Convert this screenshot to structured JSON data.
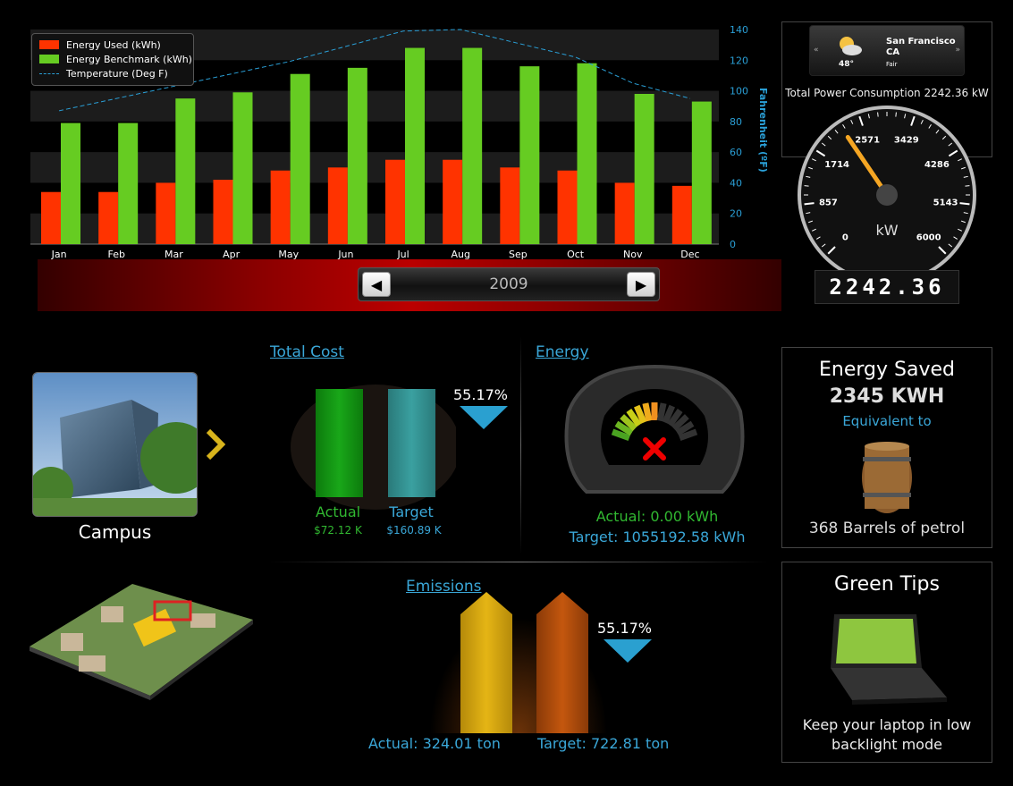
{
  "chart_data": {
    "type": "bar",
    "categories": [
      "Jan",
      "Feb",
      "Mar",
      "Apr",
      "May",
      "Jun",
      "Jul",
      "Aug",
      "Sep",
      "Oct",
      "Nov",
      "Dec"
    ],
    "series": [
      {
        "name": "Energy Used (kWh)",
        "values": [
          34,
          34,
          40,
          42,
          48,
          50,
          55,
          55,
          50,
          48,
          40,
          38
        ],
        "color": "#ff3300"
      },
      {
        "name": "Energy Benchmark (kWh)",
        "values": [
          79,
          79,
          95,
          99,
          111,
          115,
          128,
          128,
          116,
          118,
          98,
          93
        ],
        "color": "#66cc22"
      },
      {
        "name": "Temperature (Deg F)",
        "values": [
          87,
          95,
          103,
          111,
          119,
          129,
          139,
          140,
          131,
          122,
          105,
          95
        ],
        "color": "#2a9fd6",
        "style": "dashed"
      }
    ],
    "ylim": [
      0,
      140
    ],
    "yticks": [
      "0",
      "20",
      "40",
      "60",
      "80",
      "100",
      "120",
      "140"
    ],
    "y2label": "Fahrenheit (ºF)",
    "grid": true,
    "legend": "top-left"
  },
  "year_selector": {
    "year": "2009",
    "prev": "◀",
    "next": "▶"
  },
  "weather": {
    "city": "San Francisco",
    "state": "CA",
    "temp": "48°",
    "condition": "Fair",
    "prev": "«",
    "next": "»"
  },
  "power": {
    "title": "Total Power Consumption 2242.36 kW",
    "gauge_labels": [
      "0",
      "857",
      "1714",
      "2571",
      "3429",
      "4286",
      "5143",
      "6000"
    ],
    "unit": "kW",
    "odometer": "2242.36",
    "value": 2242.36,
    "max": 6000
  },
  "campus": {
    "label": "Campus"
  },
  "total_cost": {
    "title": "Total Cost",
    "percent": "55.17%",
    "actual_label": "Actual",
    "actual_value": "$72.12 K",
    "target_label": "Target",
    "target_value": "$160.89 K"
  },
  "energy": {
    "title": "Energy",
    "actual": "Actual: 0.00 kWh",
    "target": "Target: 1055192.58 kWh"
  },
  "emissions": {
    "title": "Emissions",
    "percent": "55.17%",
    "actual": "Actual: 324.01 ton",
    "target": "Target: 722.81 ton"
  },
  "energy_saved": {
    "title": "Energy Saved",
    "value": "2345 KWH",
    "equivalent": "Equivalent to",
    "barrels": "368 Barrels of petrol"
  },
  "green_tips": {
    "title": "Green Tips",
    "tip_line1": "Keep your laptop in low",
    "tip_line2": "backlight mode"
  }
}
